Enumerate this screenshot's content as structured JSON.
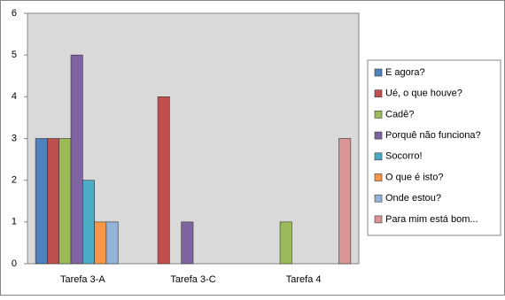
{
  "chart_data": {
    "type": "bar",
    "categories": [
      "Tarefa 3-A",
      "Tarefa 3-C",
      "Tarefa 4"
    ],
    "series": [
      {
        "name": "E agora?",
        "color": "#4f81bd",
        "values": [
          3,
          0,
          0
        ]
      },
      {
        "name": "Ué, o que houve?",
        "color": "#c0504d",
        "values": [
          3,
          4,
          0
        ]
      },
      {
        "name": "Cadê?",
        "color": "#9bbb59",
        "values": [
          3,
          0,
          1
        ]
      },
      {
        "name": "Porquê não funciona?",
        "color": "#8064a2",
        "values": [
          5,
          1,
          0
        ]
      },
      {
        "name": "Socorro!",
        "color": "#4bacc6",
        "values": [
          2,
          0,
          0
        ]
      },
      {
        "name": "O que é isto?",
        "color": "#f79646",
        "values": [
          1,
          0,
          0
        ]
      },
      {
        "name": "Onde estou?",
        "color": "#95b3d7",
        "values": [
          1,
          0,
          0
        ]
      },
      {
        "name": "Para mim está bom...",
        "color": "#d99694",
        "values": [
          0,
          0,
          3
        ]
      }
    ],
    "ylim": [
      0,
      6
    ],
    "yticks": [
      0,
      1,
      2,
      3,
      4,
      5,
      6
    ],
    "grid": true,
    "legend": "right"
  }
}
